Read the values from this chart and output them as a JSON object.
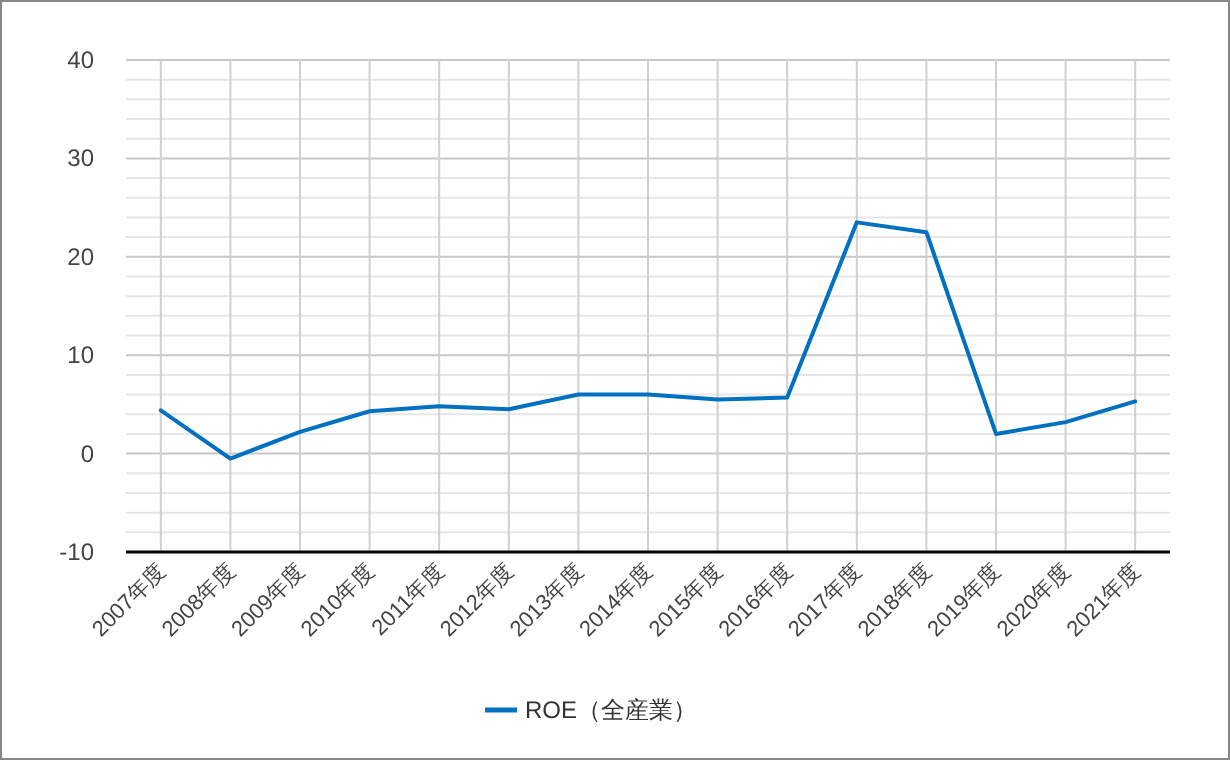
{
  "chart_data": {
    "type": "line",
    "categories": [
      "2007年度",
      "2008年度",
      "2009年度",
      "2010年度",
      "2011年度",
      "2012年度",
      "2013年度",
      "2014年度",
      "2015年度",
      "2016年度",
      "2017年度",
      "2018年度",
      "2019年度",
      "2020年度",
      "2021年度"
    ],
    "series": [
      {
        "name": "ROE（全産業）",
        "color": "#0070c0",
        "values": [
          4.4,
          -0.5,
          2.2,
          4.3,
          4.8,
          4.5,
          6.0,
          6.0,
          5.5,
          5.7,
          23.5,
          22.5,
          2.0,
          3.2,
          5.3
        ]
      }
    ],
    "ylim": [
      -10,
      40
    ],
    "yticks": [
      -10,
      {
        "value": -8,
        "label": null
      },
      {
        "value": -6,
        "label": null
      },
      {
        "value": -4,
        "label": null
      },
      {
        "value": -2,
        "label": null
      },
      0,
      {
        "value": 2,
        "label": null
      },
      {
        "value": 4,
        "label": null
      },
      {
        "value": 6,
        "label": null
      },
      {
        "value": 8,
        "label": null
      },
      10,
      {
        "value": 12,
        "label": null
      },
      {
        "value": 14,
        "label": null
      },
      {
        "value": 16,
        "label": null
      },
      {
        "value": 18,
        "label": null
      },
      20,
      {
        "value": 22,
        "label": null
      },
      {
        "value": 24,
        "label": null
      },
      {
        "value": 26,
        "label": null
      },
      {
        "value": 28,
        "label": null
      },
      30,
      {
        "value": 32,
        "label": null
      },
      {
        "value": 34,
        "label": null
      },
      {
        "value": 36,
        "label": null
      },
      {
        "value": 38,
        "label": null
      },
      40
    ],
    "grid": true,
    "legend": "bottom",
    "marker": "none",
    "line_style": "solid"
  }
}
